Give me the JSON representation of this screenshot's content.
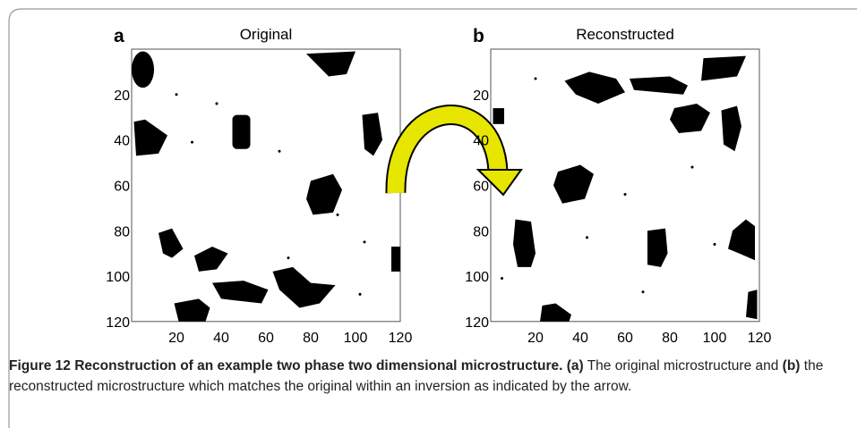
{
  "panels": [
    {
      "label": "a",
      "title": "Original",
      "xlim": [
        0,
        120
      ],
      "ylim": [
        0,
        120
      ],
      "xticks": [
        20,
        40,
        60,
        80,
        100,
        120
      ],
      "yticks": [
        20,
        40,
        60,
        80,
        100,
        120
      ]
    },
    {
      "label": "b",
      "title": "Reconstructed",
      "xlim": [
        0,
        120
      ],
      "ylim": [
        0,
        120
      ],
      "xticks": [
        20,
        40,
        60,
        80,
        100,
        120
      ],
      "yticks": [
        20,
        40,
        60,
        80,
        100,
        120
      ]
    }
  ],
  "caption": {
    "title": "Figure 12 Reconstruction of an example two phase two dimensional microstructure.",
    "parts": [
      "(a)",
      "The original microstructure and",
      "(b)",
      "the reconstructed microstructure which matches the original within an inversion as indicated by the arrow."
    ]
  }
}
